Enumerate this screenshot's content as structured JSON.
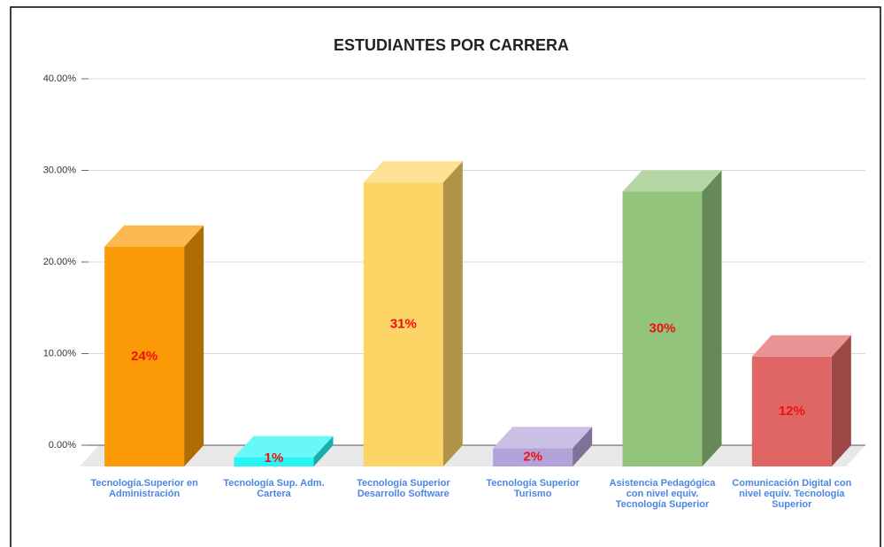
{
  "chart_data": {
    "type": "bar3d",
    "title": "ESTUDIANTES POR CARRERA",
    "categories": [
      "Tecnología.Superior en Administración",
      "Tecnología Sup. Adm. Cartera",
      "Tecnología Superior Desarrollo Software",
      "Tecnología Superior Turismo",
      "Asistencia Pedagógica con nivel equiv. Tecnología Superior",
      "Comunicación Digital con nivel equiv. Tecnología Superior"
    ],
    "values": [
      24,
      1,
      31,
      2,
      30,
      12
    ],
    "value_labels": [
      "24%",
      "1%",
      "31%",
      "2%",
      "30%",
      "12%"
    ],
    "colors": [
      "#fb9a06",
      "#27f5f5",
      "#fdd466",
      "#b3a3d9",
      "#92c47c",
      "#e06666"
    ],
    "ylim": [
      0,
      40
    ],
    "yticks": [
      {
        "value": 0,
        "label": "0.00%"
      },
      {
        "value": 10,
        "label": "10.00%"
      },
      {
        "value": 20,
        "label": "20.00%"
      },
      {
        "value": 30,
        "label": "30.00%"
      },
      {
        "value": 40,
        "label": "40.00%"
      }
    ],
    "grid": true
  }
}
